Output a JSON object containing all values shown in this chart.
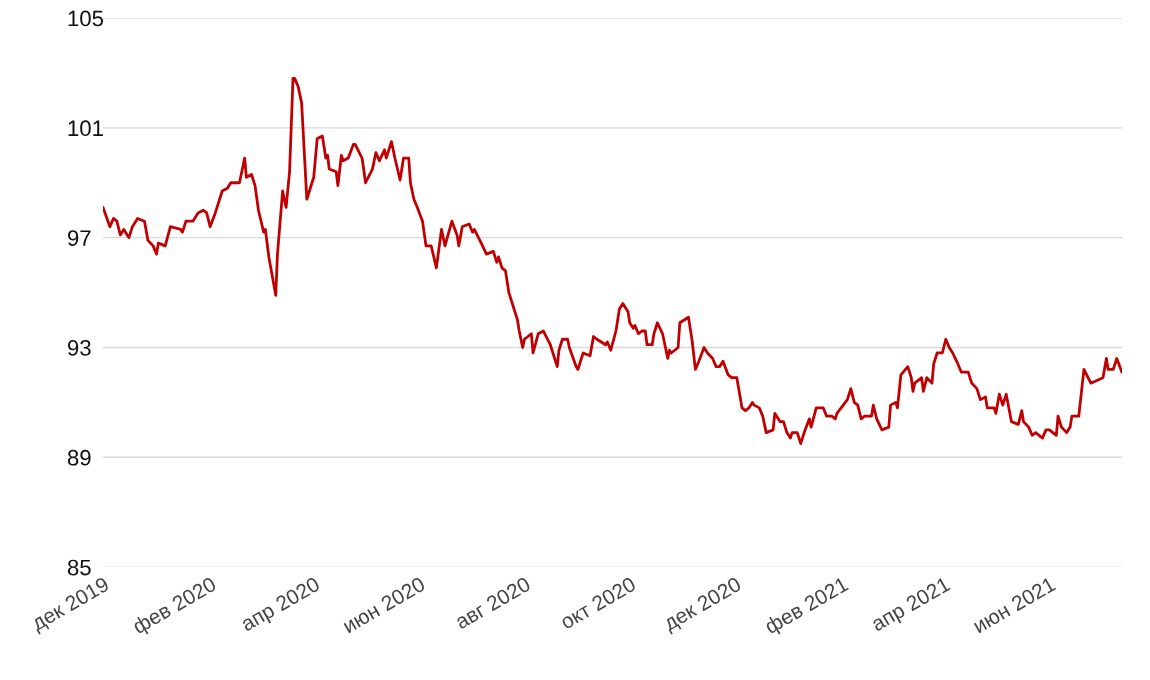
{
  "chart_data": {
    "type": "line",
    "grid": "y",
    "xlim": [
      "2019-12-01",
      "2021-07-13"
    ],
    "xticks": [
      {
        "value": "2019-12-01",
        "label": "дек 2019"
      },
      {
        "value": "2020-02-01",
        "label": "фев 2020"
      },
      {
        "value": "2020-04-01",
        "label": "апр 2020"
      },
      {
        "value": "2020-06-01",
        "label": "июн 2020"
      },
      {
        "value": "2020-08-01",
        "label": "авг 2020"
      },
      {
        "value": "2020-10-01",
        "label": "окт 2020"
      },
      {
        "value": "2020-12-01",
        "label": "дек 2020"
      },
      {
        "value": "2021-02-01",
        "label": "фев 2021"
      },
      {
        "value": "2021-04-01",
        "label": "апр 2021"
      },
      {
        "value": "2021-06-01",
        "label": "июн 2021"
      }
    ],
    "ylim": [
      85,
      105
    ],
    "yticks": [
      85,
      89,
      93,
      97,
      101,
      105
    ],
    "series": [
      {
        "color": "#c00000",
        "x": [
          "2019-12-01",
          "2019-12-05",
          "2019-12-07",
          "2019-12-09",
          "2019-12-11",
          "2019-12-13",
          "2019-12-16",
          "2019-12-18",
          "2019-12-21",
          "2019-12-25",
          "2019-12-27",
          "2019-12-30",
          "2020-01-01",
          "2020-01-02",
          "2020-01-06",
          "2020-01-09",
          "2020-01-15",
          "2020-01-16",
          "2020-01-18",
          "2020-01-22",
          "2020-01-25",
          "2020-01-28",
          "2020-01-30",
          "2020-02-01",
          "2020-02-04",
          "2020-02-08",
          "2020-02-11",
          "2020-02-13",
          "2020-02-18",
          "2020-02-21",
          "2020-02-22",
          "2020-02-25",
          "2020-02-27",
          "2020-02-29",
          "2020-03-03",
          "2020-03-04",
          "2020-03-06",
          "2020-03-10",
          "2020-03-11",
          "2020-03-14",
          "2020-03-16",
          "2020-03-18",
          "2020-03-20",
          "2020-03-21",
          "2020-03-23",
          "2020-03-25",
          "2020-03-28",
          "2020-04-01",
          "2020-04-03",
          "2020-04-06",
          "2020-04-08",
          "2020-04-09",
          "2020-04-10",
          "2020-04-14",
          "2020-04-15",
          "2020-04-17",
          "2020-04-18",
          "2020-04-21",
          "2020-04-24",
          "2020-04-25",
          "2020-04-29",
          "2020-05-01",
          "2020-05-05",
          "2020-05-07",
          "2020-05-09",
          "2020-05-12",
          "2020-05-13",
          "2020-05-16",
          "2020-05-18",
          "2020-05-21",
          "2020-05-23",
          "2020-05-26",
          "2020-05-27",
          "2020-05-29",
          "2020-05-31",
          "2020-06-03",
          "2020-06-05",
          "2020-06-08",
          "2020-06-11",
          "2020-06-14",
          "2020-06-16",
          "2020-06-20",
          "2020-06-23",
          "2020-06-24",
          "2020-06-26",
          "2020-06-30",
          "2020-07-02",
          "2020-07-03",
          "2020-07-07",
          "2020-07-10",
          "2020-07-14",
          "2020-07-16",
          "2020-07-17",
          "2020-07-19",
          "2020-07-21",
          "2020-07-23",
          "2020-07-28",
          "2020-07-29",
          "2020-07-31",
          "2020-08-01",
          "2020-08-05",
          "2020-08-06",
          "2020-08-09",
          "2020-08-12",
          "2020-08-16",
          "2020-08-17",
          "2020-08-20",
          "2020-08-21",
          "2020-08-23",
          "2020-08-26",
          "2020-08-27",
          "2020-08-31",
          "2020-09-01",
          "2020-09-04",
          "2020-09-08",
          "2020-09-10",
          "2020-09-12",
          "2020-09-17",
          "2020-09-18",
          "2020-09-20",
          "2020-09-23",
          "2020-09-25",
          "2020-09-27",
          "2020-09-30",
          "2020-10-01",
          "2020-10-03",
          "2020-10-04",
          "2020-10-06",
          "2020-10-08",
          "2020-10-10",
          "2020-10-11",
          "2020-10-14",
          "2020-10-15",
          "2020-10-17",
          "2020-10-20",
          "2020-10-23",
          "2020-10-24",
          "2020-10-25",
          "2020-10-29",
          "2020-10-30",
          "2020-11-04",
          "2020-11-06",
          "2020-11-08",
          "2020-11-10",
          "2020-11-13",
          "2020-11-15",
          "2020-11-18",
          "2020-11-20",
          "2020-11-22",
          "2020-11-24",
          "2020-11-27",
          "2020-11-29",
          "2020-12-02",
          "2020-12-05",
          "2020-12-07",
          "2020-12-09",
          "2020-12-11",
          "2020-12-12",
          "2020-12-15",
          "2020-12-17",
          "2020-12-19",
          "2020-12-23",
          "2020-12-24",
          "2020-12-27",
          "2020-12-29",
          "2020-12-31",
          "2021-01-02",
          "2021-01-03",
          "2021-01-06",
          "2021-01-08",
          "2021-01-10",
          "2021-01-13",
          "2021-01-14",
          "2021-01-17",
          "2021-01-21",
          "2021-01-23",
          "2021-01-26",
          "2021-01-28",
          "2021-01-29",
          "2021-02-04",
          "2021-02-06",
          "2021-02-08",
          "2021-02-10",
          "2021-02-12",
          "2021-02-14",
          "2021-02-18",
          "2021-02-19",
          "2021-02-21",
          "2021-02-24",
          "2021-02-28",
          "2021-03-01",
          "2021-03-04",
          "2021-03-05",
          "2021-03-07",
          "2021-03-11",
          "2021-03-13",
          "2021-03-14",
          "2021-03-15",
          "2021-03-19",
          "2021-03-20",
          "2021-03-22",
          "2021-03-25",
          "2021-03-26",
          "2021-03-28",
          "2021-03-31",
          "2021-04-02",
          "2021-04-04",
          "2021-04-06",
          "2021-04-09",
          "2021-04-11",
          "2021-04-15",
          "2021-04-17",
          "2021-04-20",
          "2021-04-22",
          "2021-04-25",
          "2021-04-26",
          "2021-04-30",
          "2021-05-01",
          "2021-05-03",
          "2021-05-05",
          "2021-05-07",
          "2021-05-10",
          "2021-05-14",
          "2021-05-16",
          "2021-05-17",
          "2021-05-20",
          "2021-05-22",
          "2021-05-24",
          "2021-05-28",
          "2021-05-30",
          "2021-06-01",
          "2021-06-05",
          "2021-06-06",
          "2021-06-08",
          "2021-06-11",
          "2021-06-13",
          "2021-06-14",
          "2021-06-18",
          "2021-06-21",
          "2021-06-25",
          "2021-07-02",
          "2021-07-04",
          "2021-07-05",
          "2021-07-08",
          "2021-07-10",
          "2021-07-13"
        ],
        "values": [
          98.1,
          97.4,
          97.7,
          97.6,
          97.1,
          97.3,
          97.0,
          97.4,
          97.7,
          97.6,
          96.9,
          96.7,
          96.4,
          96.8,
          96.7,
          97.4,
          97.3,
          97.2,
          97.6,
          97.6,
          97.9,
          98.0,
          97.9,
          97.4,
          97.9,
          98.7,
          98.8,
          99.0,
          99.0,
          99.9,
          99.2,
          99.3,
          98.9,
          98.0,
          97.2,
          97.3,
          96.3,
          94.9,
          96.4,
          98.7,
          98.1,
          99.4,
          102.8,
          102.8,
          102.5,
          101.9,
          98.4,
          99.2,
          100.6,
          100.7,
          99.9,
          100.0,
          99.5,
          99.4,
          98.9,
          100.0,
          99.8,
          99.9,
          100.4,
          100.4,
          99.9,
          99.0,
          99.5,
          100.1,
          99.8,
          100.2,
          99.9,
          100.5,
          99.9,
          99.1,
          99.9,
          99.9,
          99.0,
          98.4,
          98.1,
          97.6,
          96.7,
          96.7,
          95.9,
          97.3,
          96.7,
          97.6,
          97.1,
          96.7,
          97.4,
          97.5,
          97.2,
          97.3,
          96.8,
          96.4,
          96.5,
          96.1,
          96.3,
          95.9,
          95.8,
          95.0,
          94.0,
          93.6,
          93.0,
          93.3,
          93.5,
          92.8,
          93.5,
          93.6,
          93.1,
          92.9,
          92.3,
          92.9,
          93.3,
          93.3,
          93.0,
          92.3,
          92.2,
          92.8,
          92.7,
          93.4,
          93.3,
          93.1,
          93.2,
          92.9,
          93.6,
          94.4,
          94.6,
          94.3,
          93.9,
          93.7,
          93.8,
          93.5,
          93.6,
          93.6,
          93.1,
          93.1,
          93.5,
          93.9,
          93.5,
          92.6,
          92.9,
          92.8,
          93.0,
          93.9,
          94.1,
          93.3,
          92.2,
          92.5,
          93.0,
          92.8,
          92.6,
          92.3,
          92.3,
          92.5,
          92.0,
          91.9,
          91.9,
          90.8,
          90.7,
          90.8,
          91.0,
          90.9,
          90.8,
          90.5,
          89.9,
          90.0,
          90.6,
          90.3,
          90.3,
          89.9,
          89.7,
          89.9,
          89.9,
          89.5,
          89.9,
          90.4,
          90.1,
          90.8,
          90.8,
          90.5,
          90.5,
          90.4,
          90.6,
          91.1,
          91.5,
          91.0,
          90.9,
          90.4,
          90.5,
          90.5,
          90.9,
          90.4,
          90.0,
          90.1,
          90.9,
          91.0,
          90.8,
          92.0,
          92.3,
          91.9,
          91.4,
          91.7,
          91.9,
          91.4,
          91.9,
          91.7,
          92.4,
          92.8,
          92.8,
          93.3,
          93.0,
          92.8,
          92.4,
          92.1,
          92.1,
          91.7,
          91.5,
          91.1,
          91.2,
          90.8,
          90.8,
          90.6,
          91.3,
          90.9,
          91.3,
          90.3,
          90.2,
          90.7,
          90.3,
          90.1,
          89.8,
          89.9,
          89.7,
          90.0,
          90.0,
          89.8,
          90.5,
          90.1,
          89.9,
          90.1,
          90.5,
          90.5,
          92.2,
          91.7,
          91.9,
          92.6,
          92.2,
          92.2,
          92.6,
          92.1
        ]
      }
    ]
  }
}
